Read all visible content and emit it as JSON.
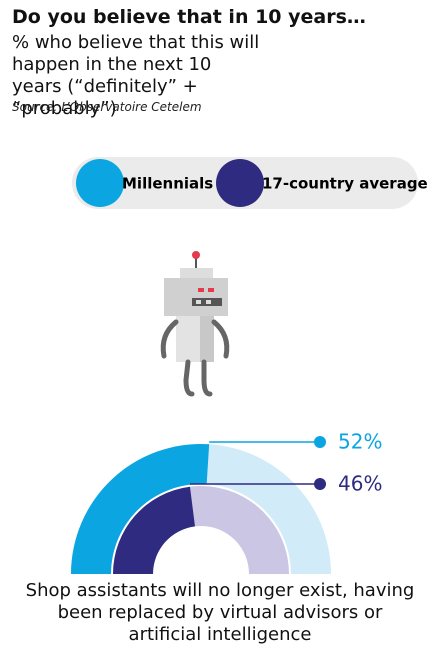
{
  "chart_data": {
    "type": "gauge",
    "title": "Do you believe that in 10 years…",
    "subtitle": "% who believe that this will happen in the next 10 years (“definitely” + “probably”)",
    "source": "Source: L’Observatoire Cetelem",
    "caption": "Shop assistants will no longer exist, having been replaced by virtual advisors or artificial intelligence",
    "ylim": [
      0,
      100
    ],
    "series": [
      {
        "name": "Millennials",
        "color": "#0ba5e2",
        "track_color": "#d1ebf9",
        "values": [
          52
        ],
        "value_labels": [
          "52%"
        ]
      },
      {
        "name": "17-country average",
        "color": "#2e2b80",
        "track_color": "#cbc6e4",
        "values": [
          46
        ],
        "value_labels": [
          "46%"
        ]
      }
    ]
  }
}
